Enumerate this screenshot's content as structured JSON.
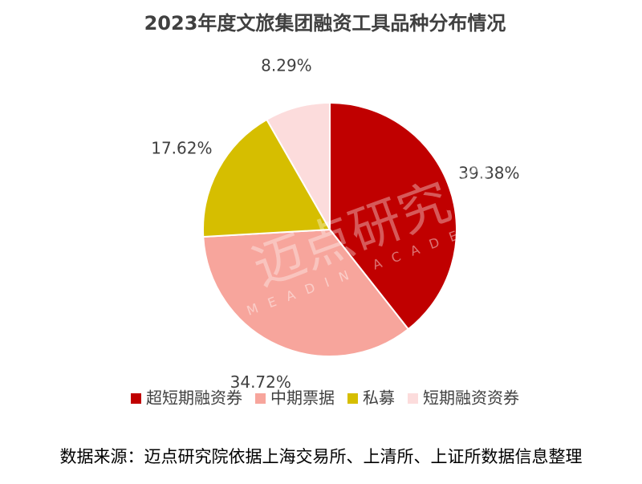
{
  "chart_data": {
    "type": "pie",
    "title": "2023年度文旅集团融资工具品种分布情况",
    "categories": [
      "超短期融资券",
      "中期票据",
      "私募",
      "短期融资资券"
    ],
    "values": [
      39.38,
      34.72,
      17.62,
      8.29
    ],
    "value_labels": [
      "39.38%",
      "34.72%",
      "17.62%",
      "8.29%"
    ],
    "colors": [
      "#c00000",
      "#f7a59c",
      "#d6be00",
      "#fcdcdc"
    ],
    "legend": "bottom",
    "watermark": "迈点研究院",
    "watermark_en": "MEADIN ACADEMY",
    "source": "数据来源：迈点研究院依据上海交易所、上清所、上证所数据信息整理"
  }
}
